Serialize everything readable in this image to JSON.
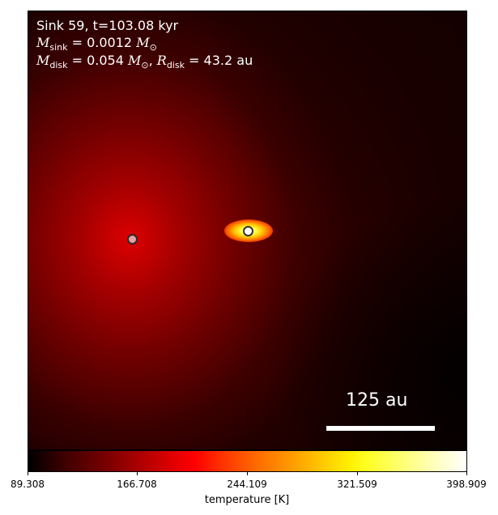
{
  "annotation": {
    "title": "Sink 59, t=103.08 kyr",
    "msink_symbol": "M",
    "msink_sub": "sink",
    "msink_value": " = 0.0012 ",
    "msun_symbol": "M",
    "msun_sub": "⊙",
    "mdisk_symbol": "M",
    "mdisk_sub": "disk",
    "mdisk_value": " = 0.054 ",
    "rdisk_symbol": "R",
    "rdisk_sub": "disk",
    "rdisk_value": " = 43.2 au",
    "sep": ", "
  },
  "scalebar": {
    "label": "125 au"
  },
  "colorbar": {
    "label": "temperature [K]",
    "ticks": [
      "89.308",
      "166.708",
      "244.109",
      "321.509",
      "398.909"
    ],
    "colormap": "hot",
    "vmin": 89.308,
    "vmax": 398.909
  },
  "sinks": [
    {
      "name": "sink-left",
      "color": "#e8a0a0"
    },
    {
      "name": "sink-right",
      "color": "#ffffff"
    }
  ]
}
